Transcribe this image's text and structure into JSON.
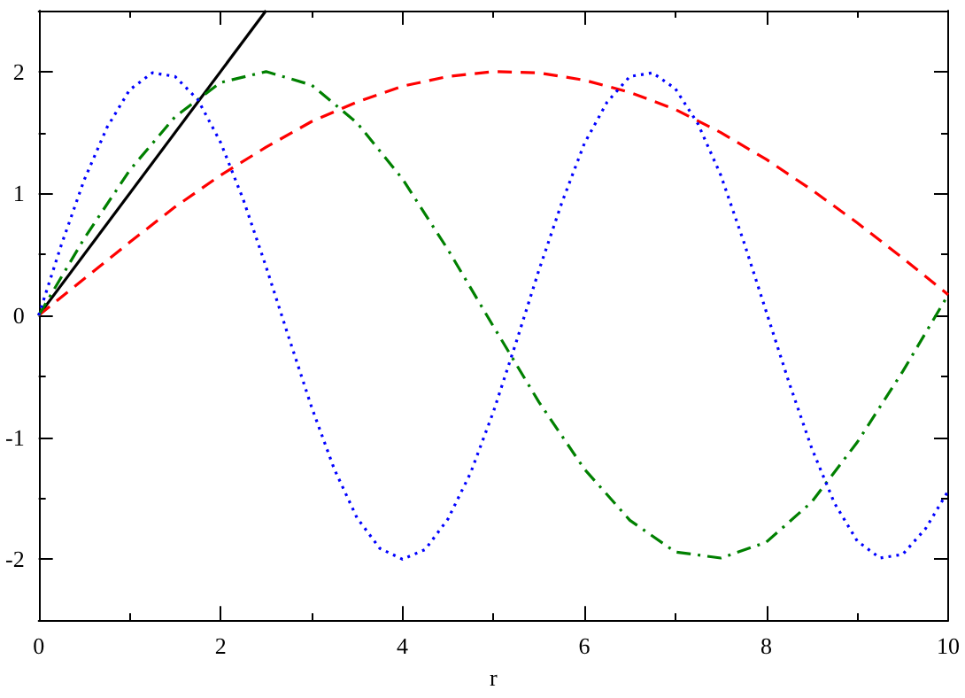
{
  "chart_data": {
    "type": "line",
    "xlabel": "r",
    "xlim": [
      0,
      10
    ],
    "ylim": [
      -2.5,
      2.5
    ],
    "xticks": [
      0,
      2,
      4,
      6,
      8,
      10
    ],
    "yticks": [
      -2,
      -1,
      0,
      1,
      2
    ],
    "grid": false,
    "marker": "none",
    "series": [
      {
        "color": "#000000",
        "line_style": "solid",
        "x": [
          0,
          2.5
        ],
        "values": [
          0,
          2.5
        ]
      },
      {
        "color": "#ff0000",
        "line_style": "dashed",
        "x": [
          0,
          0.5,
          1,
          1.5,
          2,
          2.5,
          3,
          3.5,
          4,
          4.5,
          5,
          5.5,
          6,
          6.5,
          7,
          7.5,
          8,
          8.5,
          9,
          9.5,
          10
        ],
        "values": [
          0,
          0.3,
          0.6,
          0.89,
          1.15,
          1.38,
          1.59,
          1.75,
          1.88,
          1.96,
          2.0,
          1.99,
          1.93,
          1.83,
          1.69,
          1.5,
          1.28,
          1.03,
          0.76,
          0.47,
          0.17
        ]
      },
      {
        "color": "#008000",
        "line_style": "dashdot",
        "x": [
          0,
          0.5,
          1,
          1.5,
          2,
          2.5,
          3,
          3.5,
          4,
          4.5,
          5,
          5.5,
          6,
          6.5,
          7,
          7.5,
          8,
          8.5,
          9,
          9.5,
          10
        ],
        "values": [
          0,
          0.63,
          1.19,
          1.63,
          1.91,
          2.0,
          1.89,
          1.58,
          1.12,
          0.54,
          -0.09,
          -0.71,
          -1.26,
          -1.68,
          -1.94,
          -1.99,
          -1.86,
          -1.53,
          -1.04,
          -0.46,
          0.17
        ]
      },
      {
        "color": "#0000ff",
        "line_style": "dotted",
        "x": [
          0,
          0.25,
          0.5,
          0.75,
          1,
          1.25,
          1.5,
          1.75,
          2,
          2.25,
          2.5,
          2.75,
          3,
          3.25,
          3.5,
          3.75,
          4,
          4.25,
          4.5,
          4.75,
          5,
          5.25,
          5.5,
          5.75,
          6,
          6.25,
          6.5,
          6.75,
          7,
          7.25,
          7.5,
          7.75,
          8,
          8.25,
          8.5,
          8.75,
          9,
          9.25,
          9.5,
          9.75,
          10
        ],
        "values": [
          0,
          0.58,
          1.11,
          1.54,
          1.85,
          1.99,
          1.96,
          1.77,
          1.42,
          0.95,
          0.4,
          -0.18,
          -0.75,
          -1.26,
          -1.66,
          -1.91,
          -2.0,
          -1.92,
          -1.67,
          -1.29,
          -0.79,
          -0.22,
          0.37,
          0.92,
          1.41,
          1.75,
          1.96,
          1.99,
          1.86,
          1.57,
          1.15,
          0.61,
          0.03,
          -0.55,
          -1.09,
          -1.54,
          -1.85,
          -1.99,
          -1.96,
          -1.75,
          -1.44
        ]
      }
    ]
  }
}
